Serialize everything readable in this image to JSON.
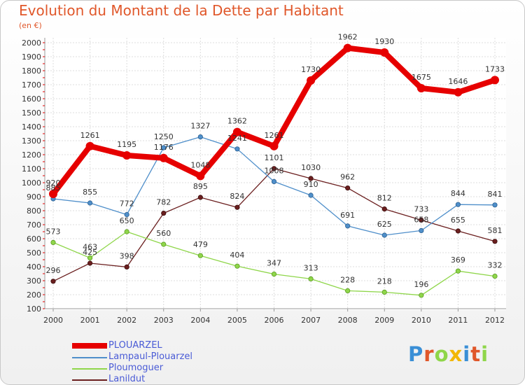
{
  "title": "Evolution du Montant de la Dette par Habitant",
  "subtitle": "(en €)",
  "logo": "Proxiti",
  "chart_data": {
    "type": "line",
    "x": [
      "2000",
      "2001",
      "2002",
      "2003",
      "2004",
      "2005",
      "2006",
      "2007",
      "2008",
      "2009",
      "2010",
      "2011",
      "2012"
    ],
    "ylim": [
      100,
      2000
    ],
    "yticks": [
      100,
      200,
      300,
      400,
      500,
      600,
      700,
      800,
      900,
      1000,
      1100,
      1200,
      1300,
      1400,
      1500,
      1600,
      1700,
      1800,
      1900,
      2000
    ],
    "grid": true,
    "legend_position": "bottom-left",
    "series": [
      {
        "name": "PLOUARZEL",
        "color": "#e60000",
        "values": [
          920,
          1261,
          1195,
          1176,
          1048,
          1362,
          1261,
          1730,
          1962,
          1930,
          1675,
          1646,
          1733
        ]
      },
      {
        "name": "Lampaul-Plouarzel",
        "color": "#4f8fca",
        "values": [
          885,
          855,
          772,
          1250,
          1327,
          1241,
          1008,
          910,
          691,
          625,
          658,
          844,
          841
        ]
      },
      {
        "name": "Ploumoguer",
        "color": "#8fd64a",
        "values": [
          573,
          463,
          650,
          560,
          479,
          404,
          347,
          313,
          228,
          218,
          196,
          369,
          332
        ]
      },
      {
        "name": "Lanildut",
        "color": "#6b1f1f",
        "values": [
          296,
          425,
          398,
          782,
          895,
          824,
          1101,
          1030,
          962,
          812,
          733,
          655,
          581
        ]
      }
    ],
    "data_labels": [
      [
        "920",
        "1261",
        "1195",
        "1176",
        "1048",
        "1362",
        "1261",
        "1730",
        "1962",
        "1930",
        "1675",
        "1646",
        "1733"
      ],
      [
        "885",
        "855",
        "772",
        "1250",
        "1327",
        "1241",
        "1008",
        "910",
        "691",
        "625",
        "658",
        "844",
        "841"
      ],
      [
        "573",
        "463",
        "650",
        "560",
        "479",
        "404",
        "347",
        "313",
        "228",
        "218",
        "196",
        "369",
        "332"
      ],
      [
        "296",
        "425",
        "398",
        "782",
        "895",
        "824",
        "1101",
        "1030",
        "962",
        "812",
        "733",
        "655",
        "581"
      ]
    ]
  }
}
